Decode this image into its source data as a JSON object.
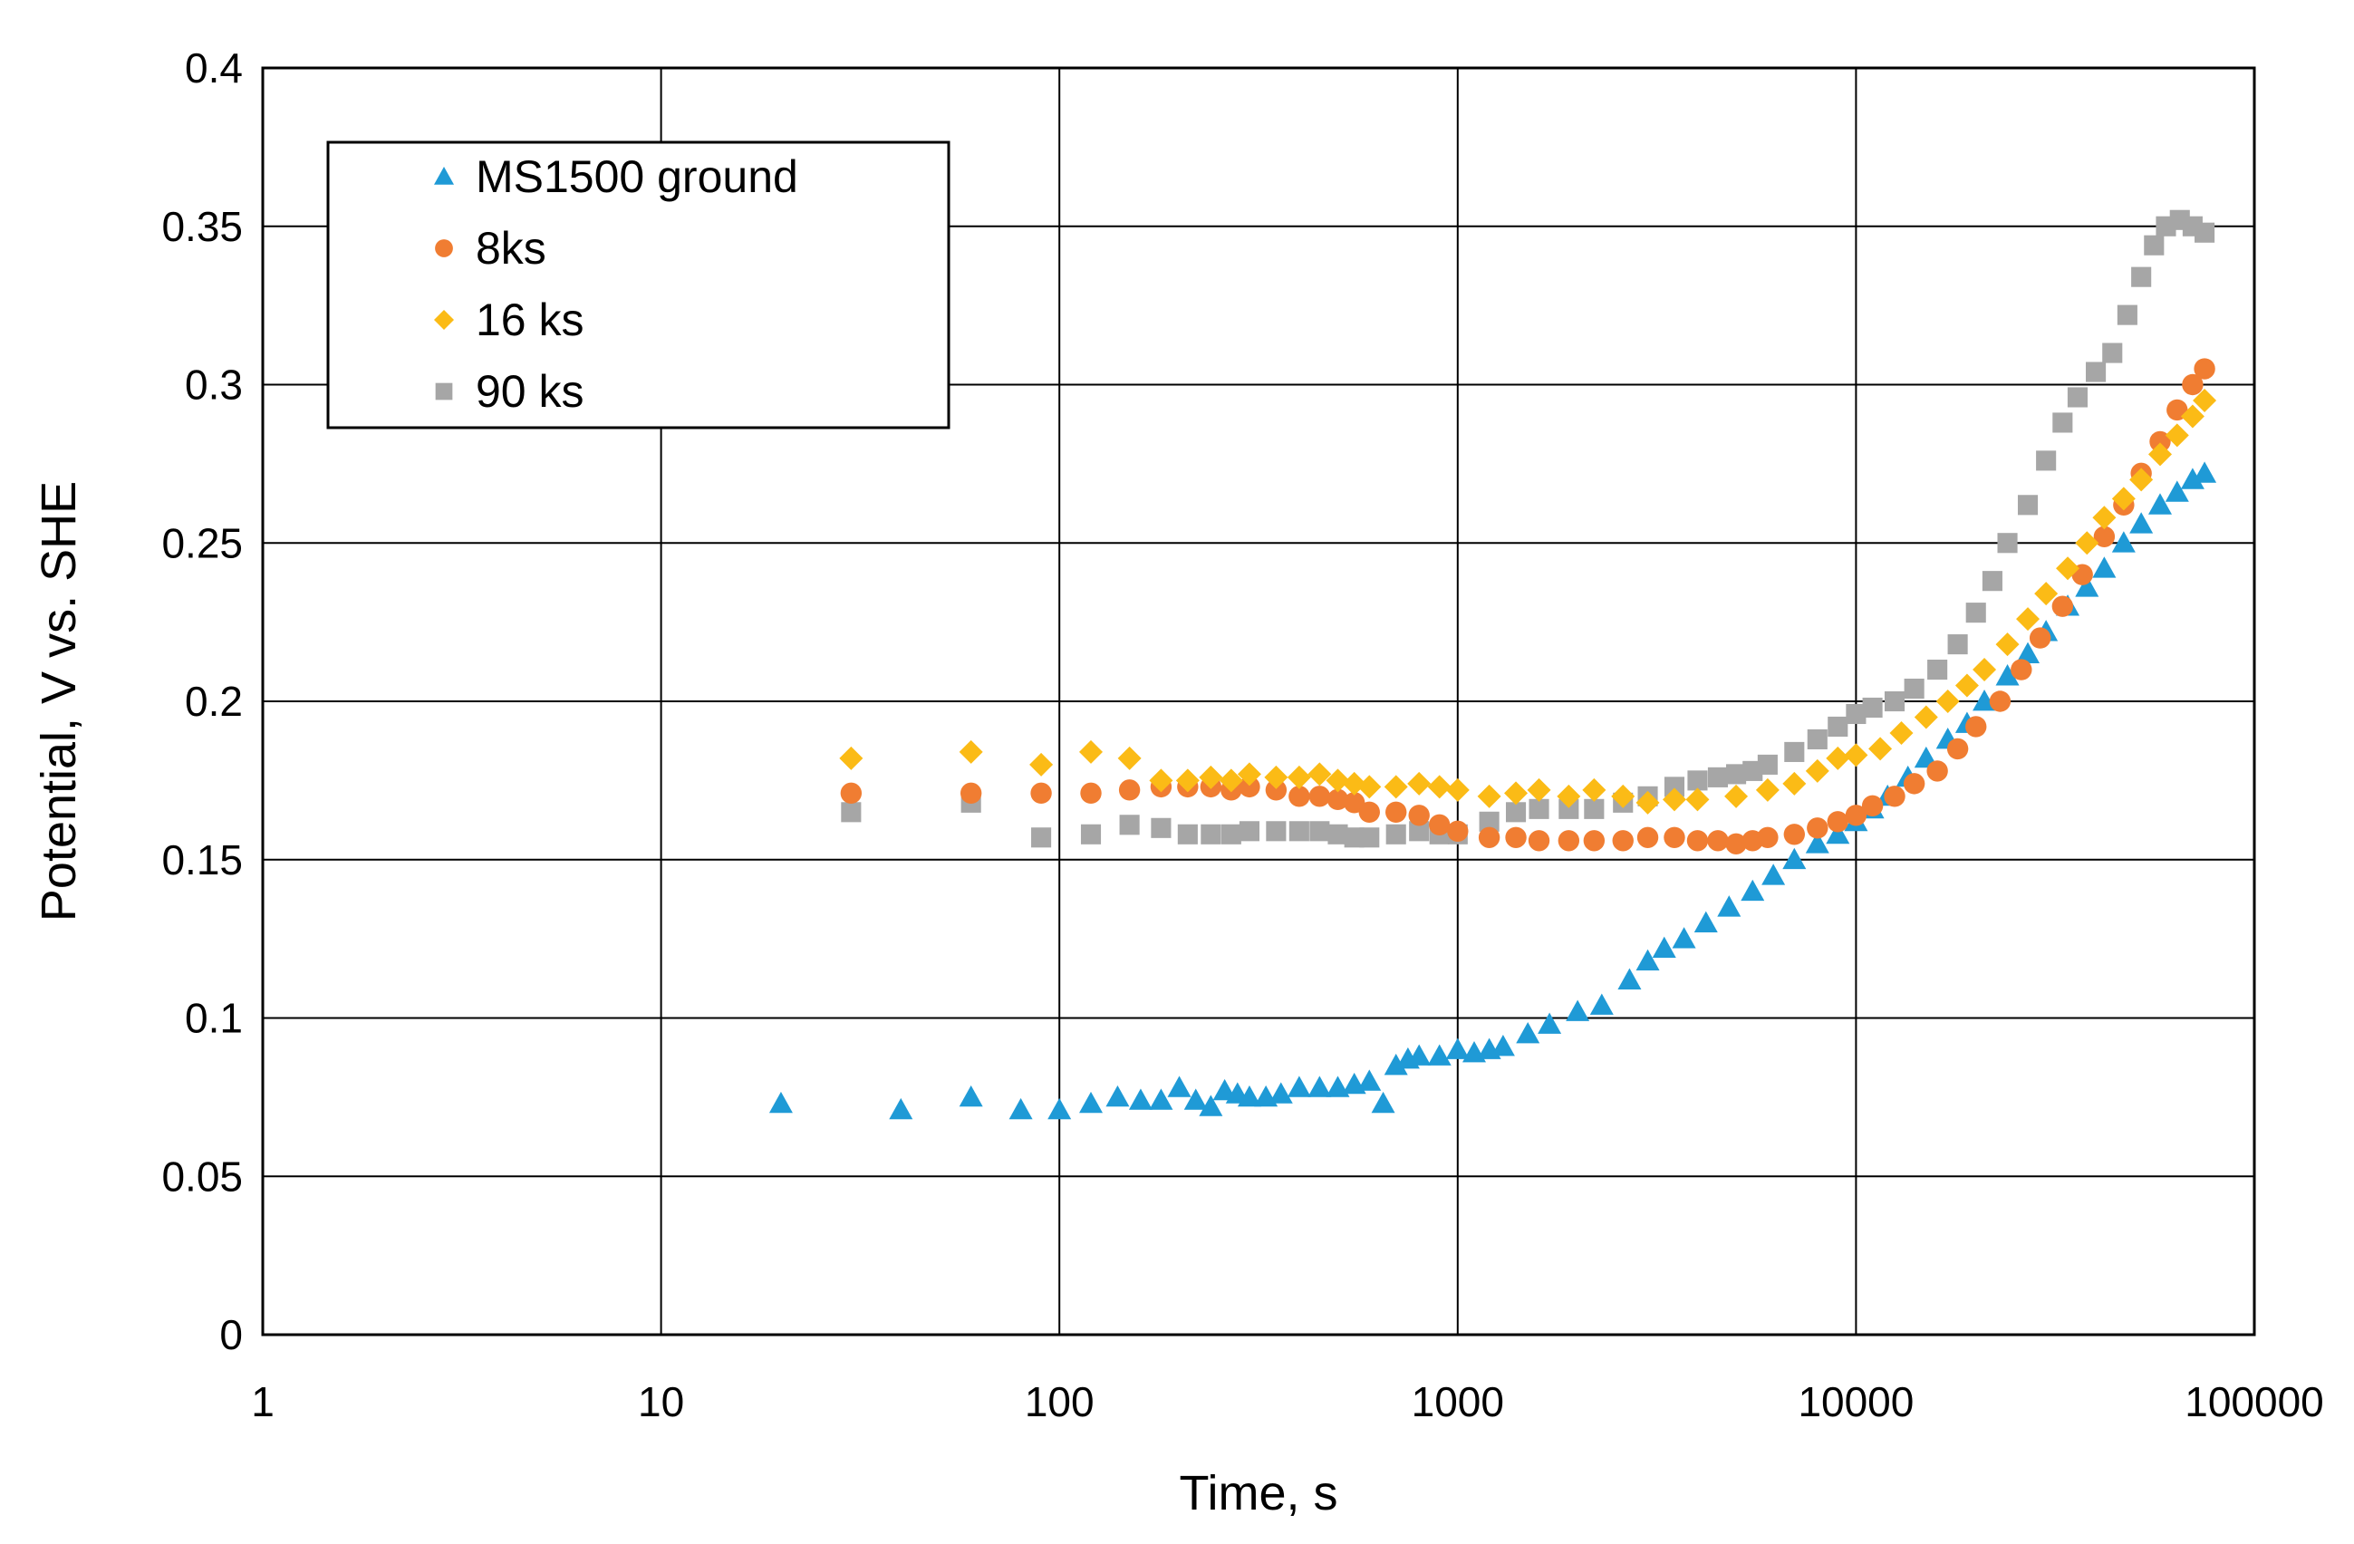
{
  "chart_data": {
    "type": "scatter",
    "title": "",
    "xlabel": "Time, s",
    "ylabel": "Potential, V vs. SHE",
    "xscale": "log",
    "xlim": [
      1,
      100000
    ],
    "ylim": [
      0,
      0.4
    ],
    "grid": true,
    "legend_position": "top-left",
    "x_ticks": [
      1,
      10,
      100,
      1000,
      10000,
      100000
    ],
    "x_tick_labels": [
      "1",
      "10",
      "100",
      "1000",
      "10000",
      "100000"
    ],
    "y_ticks": [
      0,
      0.05,
      0.1,
      0.15,
      0.2,
      0.25,
      0.3,
      0.35,
      0.4
    ],
    "y_tick_labels": [
      "0",
      "0.05",
      "0.1",
      "0.15",
      "0.2",
      "0.25",
      "0.3",
      "0.35",
      "0.4"
    ],
    "series": [
      {
        "name": "MS1500 ground",
        "marker": "triangle",
        "color": "#1f9ad6",
        "points": [
          [
            20,
            0.073
          ],
          [
            40,
            0.071
          ],
          [
            60,
            0.075
          ],
          [
            80,
            0.071
          ],
          [
            100,
            0.071
          ],
          [
            120,
            0.073
          ],
          [
            140,
            0.075
          ],
          [
            160,
            0.074
          ],
          [
            180,
            0.074
          ],
          [
            200,
            0.078
          ],
          [
            220,
            0.074
          ],
          [
            240,
            0.072
          ],
          [
            260,
            0.077
          ],
          [
            280,
            0.076
          ],
          [
            300,
            0.075
          ],
          [
            330,
            0.075
          ],
          [
            360,
            0.076
          ],
          [
            400,
            0.078
          ],
          [
            450,
            0.078
          ],
          [
            500,
            0.078
          ],
          [
            550,
            0.079
          ],
          [
            600,
            0.08
          ],
          [
            650,
            0.073
          ],
          [
            700,
            0.085
          ],
          [
            750,
            0.087
          ],
          [
            800,
            0.088
          ],
          [
            900,
            0.088
          ],
          [
            1000,
            0.09
          ],
          [
            1100,
            0.089
          ],
          [
            1200,
            0.09
          ],
          [
            1300,
            0.091
          ],
          [
            1500,
            0.095
          ],
          [
            1700,
            0.098
          ],
          [
            2000,
            0.102
          ],
          [
            2300,
            0.104
          ],
          [
            2700,
            0.112
          ],
          [
            3000,
            0.118
          ],
          [
            3300,
            0.122
          ],
          [
            3700,
            0.125
          ],
          [
            4200,
            0.13
          ],
          [
            4800,
            0.135
          ],
          [
            5500,
            0.14
          ],
          [
            6200,
            0.145
          ],
          [
            7000,
            0.15
          ],
          [
            8000,
            0.155
          ],
          [
            9000,
            0.158
          ],
          [
            10000,
            0.162
          ],
          [
            11000,
            0.166
          ],
          [
            12000,
            0.17
          ],
          [
            13500,
            0.176
          ],
          [
            15000,
            0.182
          ],
          [
            17000,
            0.188
          ],
          [
            19000,
            0.193
          ],
          [
            21000,
            0.2
          ],
          [
            24000,
            0.208
          ],
          [
            27000,
            0.215
          ],
          [
            30000,
            0.222
          ],
          [
            34000,
            0.23
          ],
          [
            38000,
            0.236
          ],
          [
            42000,
            0.242
          ],
          [
            47000,
            0.25
          ],
          [
            52000,
            0.256
          ],
          [
            58000,
            0.262
          ],
          [
            64000,
            0.266
          ],
          [
            70000,
            0.27
          ],
          [
            75000,
            0.272
          ]
        ]
      },
      {
        "name": "8ks",
        "marker": "circle",
        "color": "#f07d32",
        "points": [
          [
            30,
            0.171
          ],
          [
            60,
            0.171
          ],
          [
            90,
            0.171
          ],
          [
            120,
            0.171
          ],
          [
            150,
            0.172
          ],
          [
            180,
            0.173
          ],
          [
            210,
            0.173
          ],
          [
            240,
            0.173
          ],
          [
            270,
            0.172
          ],
          [
            300,
            0.173
          ],
          [
            350,
            0.172
          ],
          [
            400,
            0.17
          ],
          [
            450,
            0.17
          ],
          [
            500,
            0.169
          ],
          [
            550,
            0.168
          ],
          [
            600,
            0.165
          ],
          [
            700,
            0.165
          ],
          [
            800,
            0.164
          ],
          [
            900,
            0.161
          ],
          [
            1000,
            0.159
          ],
          [
            1200,
            0.157
          ],
          [
            1400,
            0.157
          ],
          [
            1600,
            0.156
          ],
          [
            1900,
            0.156
          ],
          [
            2200,
            0.156
          ],
          [
            2600,
            0.156
          ],
          [
            3000,
            0.157
          ],
          [
            3500,
            0.157
          ],
          [
            4000,
            0.156
          ],
          [
            4500,
            0.156
          ],
          [
            5000,
            0.155
          ],
          [
            5500,
            0.156
          ],
          [
            6000,
            0.157
          ],
          [
            7000,
            0.158
          ],
          [
            8000,
            0.16
          ],
          [
            9000,
            0.162
          ],
          [
            10000,
            0.164
          ],
          [
            11000,
            0.167
          ],
          [
            12500,
            0.17
          ],
          [
            14000,
            0.174
          ],
          [
            16000,
            0.178
          ],
          [
            18000,
            0.185
          ],
          [
            20000,
            0.192
          ],
          [
            23000,
            0.2
          ],
          [
            26000,
            0.21
          ],
          [
            29000,
            0.22
          ],
          [
            33000,
            0.23
          ],
          [
            37000,
            0.24
          ],
          [
            42000,
            0.252
          ],
          [
            47000,
            0.262
          ],
          [
            52000,
            0.272
          ],
          [
            58000,
            0.282
          ],
          [
            64000,
            0.292
          ],
          [
            70000,
            0.3
          ],
          [
            75000,
            0.305
          ]
        ]
      },
      {
        "name": "16 ks",
        "marker": "diamond",
        "color": "#fbbb16",
        "points": [
          [
            30,
            0.182
          ],
          [
            60,
            0.184
          ],
          [
            90,
            0.18
          ],
          [
            120,
            0.184
          ],
          [
            150,
            0.182
          ],
          [
            180,
            0.175
          ],
          [
            210,
            0.175
          ],
          [
            240,
            0.176
          ],
          [
            270,
            0.175
          ],
          [
            300,
            0.177
          ],
          [
            350,
            0.176
          ],
          [
            400,
            0.176
          ],
          [
            450,
            0.177
          ],
          [
            500,
            0.175
          ],
          [
            550,
            0.174
          ],
          [
            600,
            0.173
          ],
          [
            700,
            0.173
          ],
          [
            800,
            0.174
          ],
          [
            900,
            0.173
          ],
          [
            1000,
            0.172
          ],
          [
            1200,
            0.17
          ],
          [
            1400,
            0.171
          ],
          [
            1600,
            0.172
          ],
          [
            1900,
            0.17
          ],
          [
            2200,
            0.172
          ],
          [
            2600,
            0.17
          ],
          [
            3000,
            0.168
          ],
          [
            3500,
            0.169
          ],
          [
            4000,
            0.169
          ],
          [
            5000,
            0.17
          ],
          [
            6000,
            0.172
          ],
          [
            7000,
            0.174
          ],
          [
            8000,
            0.178
          ],
          [
            9000,
            0.182
          ],
          [
            10000,
            0.183
          ],
          [
            11500,
            0.185
          ],
          [
            13000,
            0.19
          ],
          [
            15000,
            0.195
          ],
          [
            17000,
            0.2
          ],
          [
            19000,
            0.205
          ],
          [
            21000,
            0.21
          ],
          [
            24000,
            0.218
          ],
          [
            27000,
            0.226
          ],
          [
            30000,
            0.234
          ],
          [
            34000,
            0.242
          ],
          [
            38000,
            0.25
          ],
          [
            42000,
            0.258
          ],
          [
            47000,
            0.264
          ],
          [
            52000,
            0.27
          ],
          [
            58000,
            0.278
          ],
          [
            64000,
            0.284
          ],
          [
            70000,
            0.29
          ],
          [
            75000,
            0.295
          ]
        ]
      },
      {
        "name": "90 ks",
        "marker": "square",
        "color": "#a6a6a6",
        "points": [
          [
            30,
            0.165
          ],
          [
            60,
            0.168
          ],
          [
            90,
            0.157
          ],
          [
            120,
            0.158
          ],
          [
            150,
            0.161
          ],
          [
            180,
            0.16
          ],
          [
            210,
            0.158
          ],
          [
            240,
            0.158
          ],
          [
            270,
            0.158
          ],
          [
            300,
            0.159
          ],
          [
            350,
            0.159
          ],
          [
            400,
            0.159
          ],
          [
            450,
            0.159
          ],
          [
            500,
            0.158
          ],
          [
            550,
            0.157
          ],
          [
            600,
            0.157
          ],
          [
            700,
            0.158
          ],
          [
            800,
            0.159
          ],
          [
            900,
            0.158
          ],
          [
            1000,
            0.158
          ],
          [
            1200,
            0.162
          ],
          [
            1400,
            0.165
          ],
          [
            1600,
            0.166
          ],
          [
            1900,
            0.166
          ],
          [
            2200,
            0.166
          ],
          [
            2600,
            0.168
          ],
          [
            3000,
            0.17
          ],
          [
            3500,
            0.173
          ],
          [
            4000,
            0.175
          ],
          [
            4500,
            0.176
          ],
          [
            5000,
            0.177
          ],
          [
            5500,
            0.178
          ],
          [
            6000,
            0.18
          ],
          [
            7000,
            0.184
          ],
          [
            8000,
            0.188
          ],
          [
            9000,
            0.192
          ],
          [
            10000,
            0.196
          ],
          [
            11000,
            0.198
          ],
          [
            12500,
            0.2
          ],
          [
            14000,
            0.204
          ],
          [
            16000,
            0.21
          ],
          [
            18000,
            0.218
          ],
          [
            20000,
            0.228
          ],
          [
            22000,
            0.238
          ],
          [
            24000,
            0.25
          ],
          [
            27000,
            0.262
          ],
          [
            30000,
            0.276
          ],
          [
            33000,
            0.288
          ],
          [
            36000,
            0.296
          ],
          [
            40000,
            0.304
          ],
          [
            44000,
            0.31
          ],
          [
            48000,
            0.322
          ],
          [
            52000,
            0.334
          ],
          [
            56000,
            0.344
          ],
          [
            60000,
            0.35
          ],
          [
            65000,
            0.352
          ],
          [
            70000,
            0.35
          ],
          [
            75000,
            0.348
          ]
        ]
      }
    ]
  }
}
